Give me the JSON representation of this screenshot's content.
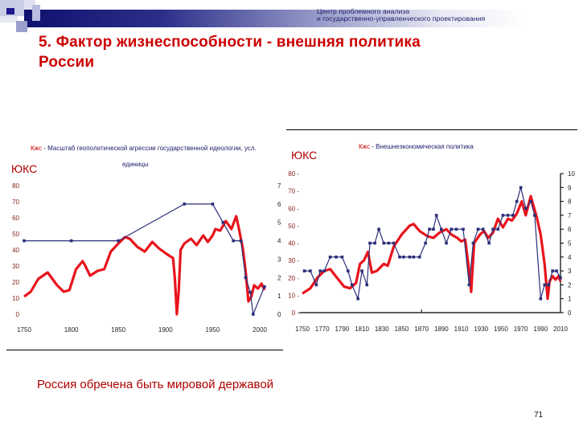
{
  "header": {
    "org_line1": "Центр проблемного анализа",
    "org_line2": "и государственно-управленческого проектирования"
  },
  "slide": {
    "title_line1": "5. Фактор жизнеспособности - внешняя политика",
    "title_line2": "России",
    "caption": "Россия обречена быть мировой державой",
    "page_number": "71"
  },
  "colors": {
    "title": "#cc0000",
    "red_series": "#e8141c",
    "blue_series": "#2b2f7a",
    "header_dark": "#10106e"
  },
  "chart_data": [
    {
      "type": "line",
      "ykc_label": "ЮКС",
      "title_prefix": "Кжс",
      "title": " - Масштаб геополитической агрессии государственной идеологии, усл.",
      "title_line2": "единицы",
      "xlabel": "",
      "ylabel_left": "ЮКС",
      "x_ticks": [
        "1750",
        "1800",
        "1850",
        "1900",
        "1950",
        "2000"
      ],
      "x_range": [
        1750,
        2000
      ],
      "y_left_ticks": [
        "0",
        "10",
        "20",
        "30",
        "40",
        "50",
        "60",
        "70",
        "80"
      ],
      "y_left_range": [
        0,
        80
      ],
      "y_right_ticks": [
        "0",
        "1",
        "2",
        "3",
        "4",
        "5",
        "6",
        "7"
      ],
      "y_right_range": [
        0,
        7
      ],
      "series": [
        {
          "name": "ЮКС",
          "axis": "left",
          "color": "#e8141c",
          "points": [
            [
              1750,
              11
            ],
            [
              1757,
              14
            ],
            [
              1765,
              22
            ],
            [
              1775,
              26
            ],
            [
              1785,
              18
            ],
            [
              1792,
              14
            ],
            [
              1798,
              15
            ],
            [
              1805,
              28
            ],
            [
              1812,
              33
            ],
            [
              1815,
              30
            ],
            [
              1820,
              24
            ],
            [
              1828,
              27
            ],
            [
              1835,
              28
            ],
            [
              1842,
              39
            ],
            [
              1850,
              44
            ],
            [
              1857,
              48
            ],
            [
              1862,
              47
            ],
            [
              1870,
              42
            ],
            [
              1878,
              39
            ],
            [
              1886,
              45
            ],
            [
              1893,
              41
            ],
            [
              1900,
              38
            ],
            [
              1905,
              36
            ],
            [
              1908,
              35
            ],
            [
              1910,
              22
            ],
            [
              1912,
              0
            ],
            [
              1914,
              14
            ],
            [
              1916,
              40
            ],
            [
              1920,
              44
            ],
            [
              1927,
              47
            ],
            [
              1933,
              43
            ],
            [
              1940,
              49
            ],
            [
              1945,
              45
            ],
            [
              1950,
              49
            ],
            [
              1953,
              53
            ],
            [
              1958,
              52
            ],
            [
              1964,
              58
            ],
            [
              1970,
              53
            ],
            [
              1975,
              61
            ],
            [
              1978,
              53
            ],
            [
              1982,
              41
            ],
            [
              1985,
              27
            ],
            [
              1988,
              8
            ],
            [
              1991,
              11
            ],
            [
              1994,
              18
            ],
            [
              1998,
              16
            ],
            [
              2002,
              19
            ],
            [
              2005,
              15
            ]
          ]
        },
        {
          "name": "Кжс",
          "axis": "right",
          "color": "#2b2f7a",
          "points": [
            [
              1750,
              4.0
            ],
            [
              1800,
              4.0
            ],
            [
              1850,
              4.0
            ],
            [
              1920,
              6.0
            ],
            [
              1950,
              6.0
            ],
            [
              1961,
              5.0
            ],
            [
              1972,
              4.0
            ],
            [
              1980,
              4.0
            ],
            [
              1985,
              2.0
            ],
            [
              1990,
              1.2
            ],
            [
              1993,
              0.0
            ],
            [
              2005,
              1.5
            ]
          ]
        }
      ]
    },
    {
      "type": "line",
      "ykc_label": "ЮКС",
      "title_prefix": "Кжс",
      "title": " - Внешнеэкономическая политика",
      "xlabel": "",
      "x_ticks": [
        "1750",
        "1770",
        "1790",
        "1810",
        "1830",
        "1850",
        "1870",
        "1890",
        "1910",
        "1930",
        "1950",
        "1970",
        "1990",
        "2010"
      ],
      "x_range": [
        1750,
        2010
      ],
      "y_left_ticks": [
        "0",
        "10",
        "20",
        "30",
        "40",
        "50",
        "60",
        "70",
        "80"
      ],
      "y_left_range": [
        0,
        80
      ],
      "y_right_ticks": [
        "0",
        "1",
        "2",
        "3",
        "4",
        "5",
        "6",
        "7",
        "8",
        "9",
        "10"
      ],
      "y_right_range": [
        0,
        10
      ],
      "series": [
        {
          "name": "ЮКС",
          "axis": "left",
          "color": "#e8141c",
          "points": [
            [
              1750,
              11
            ],
            [
              1758,
              14
            ],
            [
              1765,
              20
            ],
            [
              1772,
              24
            ],
            [
              1778,
              25
            ],
            [
              1785,
              20
            ],
            [
              1792,
              15
            ],
            [
              1798,
              14
            ],
            [
              1804,
              17
            ],
            [
              1808,
              28
            ],
            [
              1812,
              30
            ],
            [
              1816,
              35
            ],
            [
              1820,
              23
            ],
            [
              1825,
              24
            ],
            [
              1832,
              28
            ],
            [
              1836,
              27
            ],
            [
              1842,
              38
            ],
            [
              1850,
              45
            ],
            [
              1858,
              50
            ],
            [
              1862,
              51
            ],
            [
              1868,
              47
            ],
            [
              1876,
              44
            ],
            [
              1882,
              43
            ],
            [
              1888,
              46
            ],
            [
              1895,
              48
            ],
            [
              1900,
              45
            ],
            [
              1906,
              43
            ],
            [
              1910,
              41
            ],
            [
              1914,
              42
            ],
            [
              1918,
              24
            ],
            [
              1920,
              12
            ],
            [
              1923,
              40
            ],
            [
              1929,
              45
            ],
            [
              1933,
              47
            ],
            [
              1937,
              43
            ],
            [
              1942,
              46
            ],
            [
              1947,
              54
            ],
            [
              1952,
              49
            ],
            [
              1957,
              54
            ],
            [
              1961,
              53
            ],
            [
              1966,
              57
            ],
            [
              1971,
              64
            ],
            [
              1975,
              56
            ],
            [
              1980,
              67
            ],
            [
              1986,
              55
            ],
            [
              1990,
              45
            ],
            [
              1994,
              28
            ],
            [
              1997,
              8
            ],
            [
              1999,
              18
            ],
            [
              2002,
              21
            ],
            [
              2005,
              19
            ],
            [
              2008,
              21
            ],
            [
              2010,
              18
            ]
          ]
        },
        {
          "name": "Кжс",
          "axis": "right",
          "color": "#2b2f7a",
          "points": [
            [
              1752,
              3.0
            ],
            [
              1758,
              3.0
            ],
            [
              1764,
              2.0
            ],
            [
              1768,
              3.0
            ],
            [
              1772,
              3.0
            ],
            [
              1778,
              4.0
            ],
            [
              1784,
              4.0
            ],
            [
              1790,
              4.0
            ],
            [
              1796,
              3.0
            ],
            [
              1800,
              2.0
            ],
            [
              1806,
              1.0
            ],
            [
              1810,
              3.0
            ],
            [
              1815,
              2.0
            ],
            [
              1818,
              5.0
            ],
            [
              1823,
              5.0
            ],
            [
              1827,
              6.0
            ],
            [
              1832,
              5.0
            ],
            [
              1837,
              5.0
            ],
            [
              1842,
              5.0
            ],
            [
              1848,
              4.0
            ],
            [
              1852,
              4.0
            ],
            [
              1858,
              4.0
            ],
            [
              1862,
              4.0
            ],
            [
              1868,
              4.0
            ],
            [
              1874,
              5.0
            ],
            [
              1878,
              6.0
            ],
            [
              1882,
              6.0
            ],
            [
              1885,
              7.0
            ],
            [
              1890,
              6.0
            ],
            [
              1895,
              5.0
            ],
            [
              1900,
              6.0
            ],
            [
              1905,
              6.0
            ],
            [
              1912,
              6.0
            ],
            [
              1918,
              2.0
            ],
            [
              1922,
              5.0
            ],
            [
              1927,
              6.0
            ],
            [
              1932,
              6.0
            ],
            [
              1938,
              5.0
            ],
            [
              1942,
              6.0
            ],
            [
              1947,
              6.0
            ],
            [
              1952,
              7.0
            ],
            [
              1957,
              7.0
            ],
            [
              1962,
              7.0
            ],
            [
              1966,
              8.0
            ],
            [
              1970,
              9.0
            ],
            [
              1975,
              7.5
            ],
            [
              1980,
              8.0
            ],
            [
              1984,
              7.0
            ],
            [
              1990,
              1.0
            ],
            [
              1994,
              2.0
            ],
            [
              1998,
              2.0
            ],
            [
              2002,
              3.0
            ],
            [
              2006,
              3.0
            ],
            [
              2010,
              2.5
            ]
          ]
        }
      ]
    }
  ]
}
